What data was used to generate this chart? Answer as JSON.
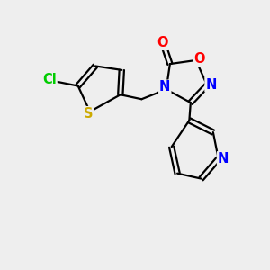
{
  "bg_color": "#eeeeee",
  "bond_color": "#000000",
  "line_width": 1.6,
  "atom_colors": {
    "O_carbonyl": "#ff0000",
    "O_ring": "#ff0000",
    "N": "#0000ff",
    "S": "#ccaa00",
    "Cl": "#00cc00",
    "C": "#000000"
  },
  "font_size": 10.5
}
